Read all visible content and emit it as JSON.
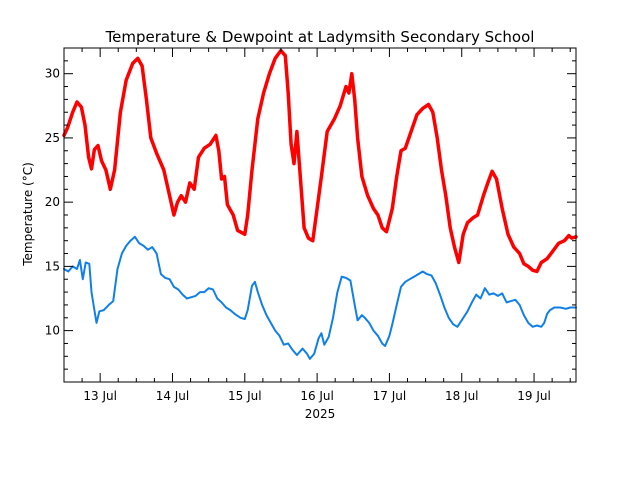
{
  "chart_data": {
    "type": "line",
    "title": "Temperature & Dewpoint at Ladymsith Secondary School",
    "xlabel": "2025",
    "ylabel": "Temperature (°C)",
    "x_unit": "day of July 2025",
    "xlim": [
      12.5,
      19.58
    ],
    "ylim": [
      6,
      32
    ],
    "x_ticks": [
      {
        "x": 13,
        "label": "13 Jul"
      },
      {
        "x": 14,
        "label": "14 Jul"
      },
      {
        "x": 15,
        "label": "15 Jul"
      },
      {
        "x": 16,
        "label": "16 Jul"
      },
      {
        "x": 17,
        "label": "17 Jul"
      },
      {
        "x": 18,
        "label": "18 Jul"
      },
      {
        "x": 19,
        "label": "19 Jul"
      }
    ],
    "y_ticks": [
      {
        "y": 10,
        "label": "10"
      },
      {
        "y": 15,
        "label": "15"
      },
      {
        "y": 20,
        "label": "20"
      },
      {
        "y": 25,
        "label": "25"
      },
      {
        "y": 30,
        "label": "30"
      }
    ],
    "grid": false,
    "legend": "none",
    "series": [
      {
        "key": "temperature",
        "color": "#ff0000",
        "points": [
          [
            12.5,
            25.2
          ],
          [
            12.55,
            25.8
          ],
          [
            12.62,
            27.0
          ],
          [
            12.68,
            27.8
          ],
          [
            12.74,
            27.4
          ],
          [
            12.79,
            26.0
          ],
          [
            12.84,
            23.5
          ],
          [
            12.88,
            22.6
          ],
          [
            12.92,
            24.1
          ],
          [
            12.97,
            24.4
          ],
          [
            13.02,
            23.2
          ],
          [
            13.08,
            22.5
          ],
          [
            13.14,
            21.0
          ],
          [
            13.2,
            22.5
          ],
          [
            13.28,
            27.0
          ],
          [
            13.36,
            29.5
          ],
          [
            13.45,
            30.8
          ],
          [
            13.52,
            31.2
          ],
          [
            13.58,
            30.6
          ],
          [
            13.64,
            28.0
          ],
          [
            13.7,
            25.0
          ],
          [
            13.78,
            23.8
          ],
          [
            13.88,
            22.5
          ],
          [
            13.96,
            20.5
          ],
          [
            14.02,
            19.0
          ],
          [
            14.07,
            20.0
          ],
          [
            14.12,
            20.5
          ],
          [
            14.18,
            20.0
          ],
          [
            14.24,
            21.5
          ],
          [
            14.3,
            21.0
          ],
          [
            14.36,
            23.5
          ],
          [
            14.44,
            24.2
          ],
          [
            14.52,
            24.5
          ],
          [
            14.6,
            25.2
          ],
          [
            14.64,
            24.0
          ],
          [
            14.68,
            21.8
          ],
          [
            14.72,
            22.0
          ],
          [
            14.76,
            19.8
          ],
          [
            14.84,
            19.0
          ],
          [
            14.9,
            17.8
          ],
          [
            15.0,
            17.5
          ],
          [
            15.04,
            19.0
          ],
          [
            15.1,
            22.5
          ],
          [
            15.18,
            26.5
          ],
          [
            15.26,
            28.5
          ],
          [
            15.34,
            30.0
          ],
          [
            15.42,
            31.2
          ],
          [
            15.5,
            31.8
          ],
          [
            15.56,
            31.4
          ],
          [
            15.6,
            28.5
          ],
          [
            15.64,
            24.5
          ],
          [
            15.68,
            23.0
          ],
          [
            15.72,
            25.5
          ],
          [
            15.76,
            22.5
          ],
          [
            15.82,
            18.0
          ],
          [
            15.88,
            17.2
          ],
          [
            15.94,
            17.0
          ],
          [
            16.0,
            19.5
          ],
          [
            16.06,
            22.0
          ],
          [
            16.14,
            25.5
          ],
          [
            16.24,
            26.5
          ],
          [
            16.32,
            27.5
          ],
          [
            16.4,
            29.0
          ],
          [
            16.44,
            28.5
          ],
          [
            16.48,
            30.0
          ],
          [
            16.52,
            28.0
          ],
          [
            16.56,
            25.0
          ],
          [
            16.62,
            22.0
          ],
          [
            16.7,
            20.5
          ],
          [
            16.78,
            19.5
          ],
          [
            16.84,
            19.0
          ],
          [
            16.9,
            18.0
          ],
          [
            16.96,
            17.7
          ],
          [
            17.04,
            19.5
          ],
          [
            17.1,
            22.0
          ],
          [
            17.16,
            24.0
          ],
          [
            17.22,
            24.2
          ],
          [
            17.3,
            25.5
          ],
          [
            17.38,
            26.8
          ],
          [
            17.46,
            27.3
          ],
          [
            17.54,
            27.6
          ],
          [
            17.6,
            27.0
          ],
          [
            17.66,
            25.0
          ],
          [
            17.72,
            22.5
          ],
          [
            17.78,
            20.5
          ],
          [
            17.84,
            18.0
          ],
          [
            17.9,
            16.5
          ],
          [
            17.96,
            15.3
          ],
          [
            18.02,
            17.5
          ],
          [
            18.08,
            18.4
          ],
          [
            18.16,
            18.8
          ],
          [
            18.22,
            19.0
          ],
          [
            18.3,
            20.5
          ],
          [
            18.36,
            21.5
          ],
          [
            18.42,
            22.4
          ],
          [
            18.48,
            21.8
          ],
          [
            18.56,
            19.5
          ],
          [
            18.64,
            17.5
          ],
          [
            18.72,
            16.5
          ],
          [
            18.8,
            16.0
          ],
          [
            18.86,
            15.2
          ],
          [
            18.92,
            15.0
          ],
          [
            18.98,
            14.7
          ],
          [
            19.04,
            14.6
          ],
          [
            19.1,
            15.3
          ],
          [
            19.18,
            15.6
          ],
          [
            19.26,
            16.2
          ],
          [
            19.34,
            16.8
          ],
          [
            19.42,
            17.0
          ],
          [
            19.48,
            17.4
          ],
          [
            19.52,
            17.2
          ],
          [
            19.58,
            17.3
          ]
        ]
      },
      {
        "key": "dewpoint",
        "color": "#1080e8",
        "points": [
          [
            12.5,
            14.8
          ],
          [
            12.56,
            14.6
          ],
          [
            12.62,
            15.0
          ],
          [
            12.68,
            14.8
          ],
          [
            12.72,
            15.5
          ],
          [
            12.76,
            14.0
          ],
          [
            12.8,
            15.3
          ],
          [
            12.85,
            15.2
          ],
          [
            12.88,
            13.0
          ],
          [
            12.92,
            11.6
          ],
          [
            12.95,
            10.6
          ],
          [
            12.99,
            11.5
          ],
          [
            13.05,
            11.6
          ],
          [
            13.12,
            12.0
          ],
          [
            13.18,
            12.3
          ],
          [
            13.24,
            14.8
          ],
          [
            13.3,
            16.0
          ],
          [
            13.36,
            16.6
          ],
          [
            13.42,
            17.0
          ],
          [
            13.48,
            17.3
          ],
          [
            13.54,
            16.8
          ],
          [
            13.6,
            16.6
          ],
          [
            13.66,
            16.3
          ],
          [
            13.72,
            16.5
          ],
          [
            13.78,
            16.0
          ],
          [
            13.84,
            14.4
          ],
          [
            13.9,
            14.1
          ],
          [
            13.96,
            14.0
          ],
          [
            14.02,
            13.4
          ],
          [
            14.08,
            13.2
          ],
          [
            14.14,
            12.8
          ],
          [
            14.2,
            12.5
          ],
          [
            14.26,
            12.6
          ],
          [
            14.32,
            12.7
          ],
          [
            14.38,
            13.0
          ],
          [
            14.44,
            13.0
          ],
          [
            14.5,
            13.3
          ],
          [
            14.56,
            13.2
          ],
          [
            14.62,
            12.5
          ],
          [
            14.68,
            12.2
          ],
          [
            14.74,
            11.8
          ],
          [
            14.8,
            11.6
          ],
          [
            14.86,
            11.3
          ],
          [
            14.94,
            11.0
          ],
          [
            15.0,
            10.9
          ],
          [
            15.04,
            11.6
          ],
          [
            15.1,
            13.5
          ],
          [
            15.14,
            13.8
          ],
          [
            15.18,
            13.0
          ],
          [
            15.24,
            12.0
          ],
          [
            15.3,
            11.2
          ],
          [
            15.36,
            10.6
          ],
          [
            15.42,
            10.0
          ],
          [
            15.48,
            9.6
          ],
          [
            15.54,
            8.9
          ],
          [
            15.6,
            9.0
          ],
          [
            15.66,
            8.5
          ],
          [
            15.72,
            8.1
          ],
          [
            15.8,
            8.6
          ],
          [
            15.86,
            8.2
          ],
          [
            15.9,
            7.8
          ],
          [
            15.96,
            8.2
          ],
          [
            16.02,
            9.4
          ],
          [
            16.06,
            9.8
          ],
          [
            16.1,
            8.9
          ],
          [
            16.16,
            9.5
          ],
          [
            16.22,
            11.0
          ],
          [
            16.28,
            13.0
          ],
          [
            16.34,
            14.2
          ],
          [
            16.4,
            14.1
          ],
          [
            16.46,
            13.9
          ],
          [
            16.52,
            12.0
          ],
          [
            16.56,
            10.8
          ],
          [
            16.62,
            11.2
          ],
          [
            16.66,
            11.0
          ],
          [
            16.72,
            10.6
          ],
          [
            16.78,
            10.0
          ],
          [
            16.84,
            9.6
          ],
          [
            16.9,
            9.0
          ],
          [
            16.94,
            8.8
          ],
          [
            17.0,
            9.6
          ],
          [
            17.04,
            10.5
          ],
          [
            17.1,
            12.0
          ],
          [
            17.16,
            13.4
          ],
          [
            17.22,
            13.8
          ],
          [
            17.28,
            14.0
          ],
          [
            17.34,
            14.2
          ],
          [
            17.4,
            14.4
          ],
          [
            17.46,
            14.6
          ],
          [
            17.52,
            14.4
          ],
          [
            17.58,
            14.3
          ],
          [
            17.64,
            13.7
          ],
          [
            17.7,
            12.8
          ],
          [
            17.76,
            11.8
          ],
          [
            17.82,
            11.0
          ],
          [
            17.88,
            10.5
          ],
          [
            17.94,
            10.3
          ],
          [
            18.0,
            10.8
          ],
          [
            18.08,
            11.5
          ],
          [
            18.14,
            12.2
          ],
          [
            18.2,
            12.8
          ],
          [
            18.26,
            12.5
          ],
          [
            18.32,
            13.3
          ],
          [
            18.38,
            12.8
          ],
          [
            18.44,
            12.9
          ],
          [
            18.5,
            12.7
          ],
          [
            18.56,
            12.9
          ],
          [
            18.62,
            12.2
          ],
          [
            18.68,
            12.3
          ],
          [
            18.74,
            12.4
          ],
          [
            18.8,
            12.0
          ],
          [
            18.86,
            11.2
          ],
          [
            18.92,
            10.6
          ],
          [
            18.98,
            10.3
          ],
          [
            19.04,
            10.4
          ],
          [
            19.1,
            10.3
          ],
          [
            19.14,
            10.6
          ],
          [
            19.18,
            11.3
          ],
          [
            19.22,
            11.6
          ],
          [
            19.28,
            11.8
          ],
          [
            19.36,
            11.8
          ],
          [
            19.44,
            11.7
          ],
          [
            19.5,
            11.8
          ],
          [
            19.58,
            11.8
          ]
        ]
      }
    ]
  }
}
